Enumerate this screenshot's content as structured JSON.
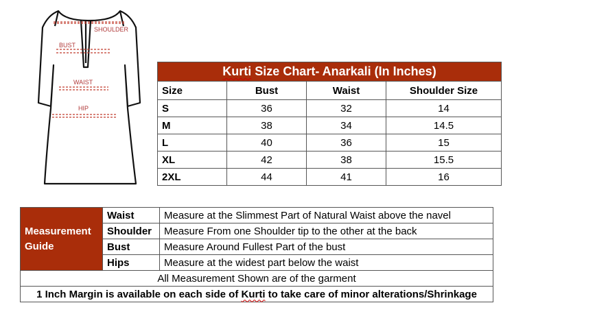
{
  "sketch": {
    "labels": [
      "SHOULDER",
      "BUST",
      "WAIST",
      "HIP"
    ],
    "accent": "#c0392b"
  },
  "size_chart": {
    "title": "Kurti Size Chart- Anarkali (In Inches)",
    "columns": [
      "Size",
      "Bust",
      "Waist",
      "Shoulder Size"
    ],
    "rows": [
      [
        "S",
        "36",
        "32",
        "14"
      ],
      [
        "M",
        "38",
        "34",
        "14.5"
      ],
      [
        "L",
        "40",
        "36",
        "15"
      ],
      [
        "XL",
        "42",
        "38",
        "15.5"
      ],
      [
        "2XL",
        "44",
        "41",
        "16"
      ]
    ],
    "header_color": "#a92d0a"
  },
  "guide": {
    "label": "Measurement Guide",
    "rows": [
      [
        "Waist",
        "Measure at the Slimmest Part of Natural Waist above the navel"
      ],
      [
        "Shoulder",
        "Measure From one Shoulder tip to the other at the back"
      ],
      [
        "Bust",
        "Measure Around Fullest Part of the bust"
      ],
      [
        "Hips",
        "Measure at the widest part below the waist"
      ]
    ],
    "note1": "All Measurement Shown are of the garment",
    "note2_pre": "1 Inch Margin is available on each side of ",
    "note2_word": "Kurti",
    "note2_post": " to take care of minor alterations/Shrinkage"
  }
}
